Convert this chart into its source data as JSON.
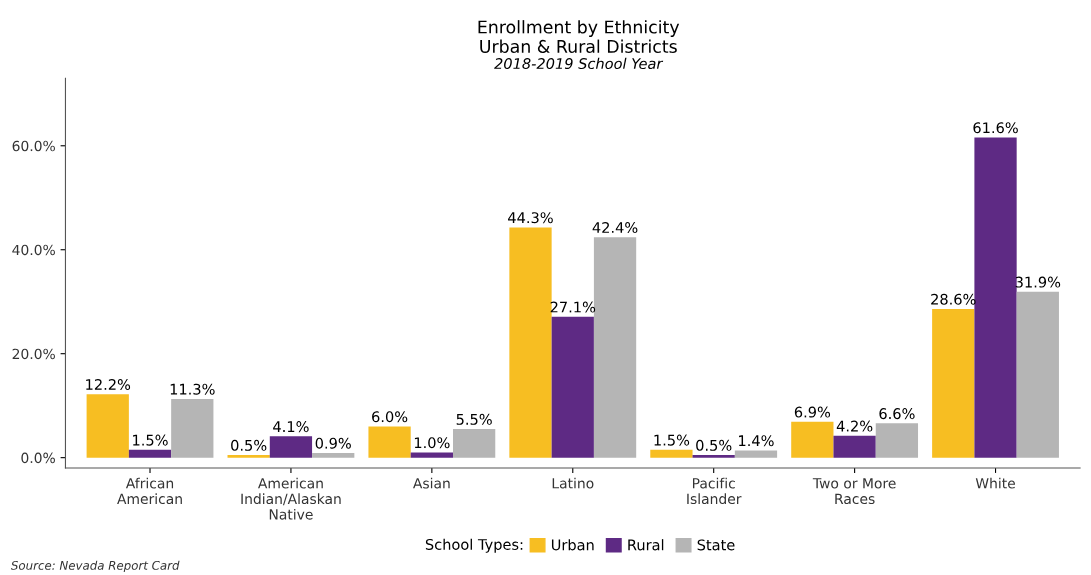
{
  "chart_data": {
    "type": "bar",
    "title": "Enrollment by Ethnicity\nUrban & Rural Districts",
    "subtitle": "2018-2019 School Year",
    "categories": [
      "African\nAmerican",
      "American\nIndian/Alaskan\nNative",
      "Asian",
      "Latino",
      "Pacific\nIslander",
      "Two or More\nRaces",
      "White"
    ],
    "series": [
      {
        "name": "Urban",
        "color": "#f7be22",
        "values": [
          12.2,
          0.5,
          6.0,
          44.3,
          1.5,
          6.9,
          28.6
        ],
        "value_labels": [
          "12.2%",
          "0.5%",
          "6.0%",
          "44.3%",
          "1.5%",
          "6.9%",
          "28.6%"
        ]
      },
      {
        "name": "Rural",
        "color": "#5e2a84",
        "values": [
          1.5,
          4.1,
          1.0,
          27.1,
          0.5,
          4.2,
          61.6
        ],
        "value_labels": [
          "1.5%",
          "4.1%",
          "1.0%",
          "27.1%",
          "0.5%",
          "4.2%",
          "61.6%"
        ]
      },
      {
        "name": "State",
        "color": "#b5b5b5",
        "values": [
          11.3,
          0.9,
          5.5,
          42.4,
          1.4,
          6.6,
          31.9
        ],
        "value_labels": [
          "11.3%",
          "0.9%",
          "5.5%",
          "42.4%",
          "1.4%",
          "6.6%",
          "31.9%"
        ]
      }
    ],
    "ylim": [
      -2,
      73
    ],
    "yticks": [
      {
        "value": 0,
        "label": "0.0%"
      },
      {
        "value": 20,
        "label": "20.0%"
      },
      {
        "value": 40,
        "label": "40.0%"
      },
      {
        "value": 60,
        "label": "60.0%"
      }
    ],
    "grid": false,
    "legend": "bottom",
    "legend_title": "School Types:",
    "annotations": [
      "Source: Nevada Report Card"
    ]
  }
}
